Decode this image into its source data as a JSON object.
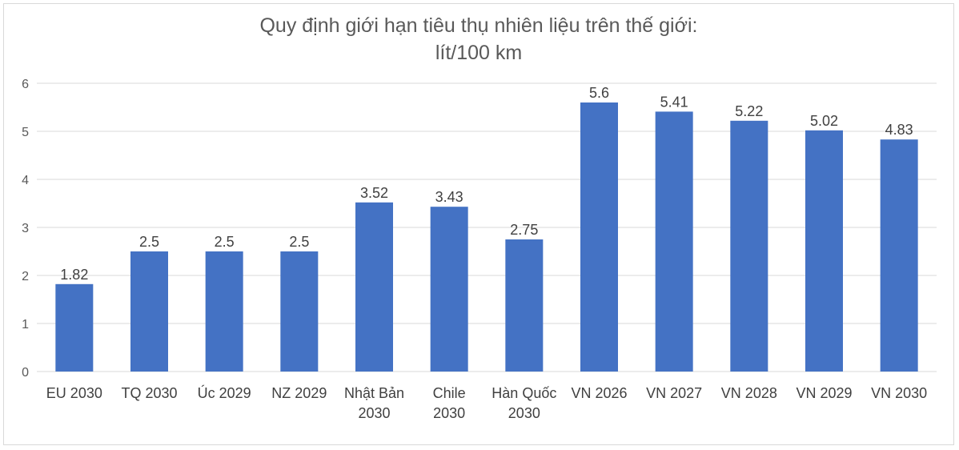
{
  "chart_data": {
    "type": "bar",
    "title_lines": [
      "Quy định giới hạn tiêu thụ nhiên liệu trên thế giới:",
      "lít/100 km"
    ],
    "categories": [
      [
        "EU 2030"
      ],
      [
        "TQ 2030"
      ],
      [
        "Úc 2029"
      ],
      [
        "NZ 2029"
      ],
      [
        "Nhật Bản",
        "2030"
      ],
      [
        "Chile",
        "2030"
      ],
      [
        "Hàn Quốc",
        "2030"
      ],
      [
        "VN 2026"
      ],
      [
        "VN 2027"
      ],
      [
        "VN 2028"
      ],
      [
        "VN 2029"
      ],
      [
        "VN 2030"
      ]
    ],
    "values": [
      1.82,
      2.5,
      2.5,
      2.5,
      3.52,
      3.43,
      2.75,
      5.6,
      5.41,
      5.22,
      5.02,
      4.83
    ],
    "data_labels": [
      "1.82",
      "2.5",
      "2.5",
      "2.5",
      "3.52",
      "3.43",
      "2.75",
      "5.6",
      "5.41",
      "5.22",
      "5.02",
      "4.83"
    ],
    "y_ticks": [
      "0",
      "1",
      "2",
      "3",
      "4",
      "5",
      "6"
    ],
    "ylim": [
      0,
      6
    ],
    "grid": true,
    "legend": "none",
    "bar_color": "#4472c4",
    "xlabel": "",
    "ylabel": ""
  }
}
